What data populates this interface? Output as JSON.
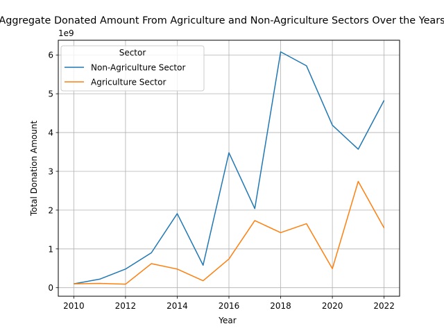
{
  "chart_data": {
    "type": "line",
    "title": "Aggregate Donated Amount From Agriculture and Non-Agriculture Sectors Over the Years",
    "xlabel": "Year",
    "ylabel": "Total Donation Amount",
    "y_offset_label": "1e9",
    "x_ticks": [
      "2010",
      "2012",
      "2014",
      "2016",
      "2018",
      "2020",
      "2022"
    ],
    "y_ticks": [
      "0",
      "1",
      "2",
      "3",
      "4",
      "5",
      "6"
    ],
    "xlim": [
      2009.4,
      2022.6
    ],
    "ylim": [
      -0.22,
      6.38
    ],
    "grid": true,
    "legend": {
      "title": "Sector",
      "placement": "upper-left"
    },
    "x": [
      2010,
      2011,
      2012,
      2013,
      2014,
      2015,
      2016,
      2017,
      2018,
      2019,
      2020,
      2021,
      2022
    ],
    "series": [
      {
        "name": "Non-Agriculture Sector",
        "color": "#1f77b4",
        "values": [
          0.1,
          0.22,
          0.48,
          0.9,
          1.91,
          0.58,
          3.48,
          2.04,
          6.08,
          5.72,
          4.19,
          3.57,
          4.83
        ]
      },
      {
        "name": "Agriculture Sector",
        "color": "#ff7f0e",
        "values": [
          0.1,
          0.11,
          0.09,
          0.62,
          0.48,
          0.18,
          0.74,
          1.73,
          1.42,
          1.65,
          0.49,
          2.74,
          1.54
        ]
      }
    ]
  }
}
